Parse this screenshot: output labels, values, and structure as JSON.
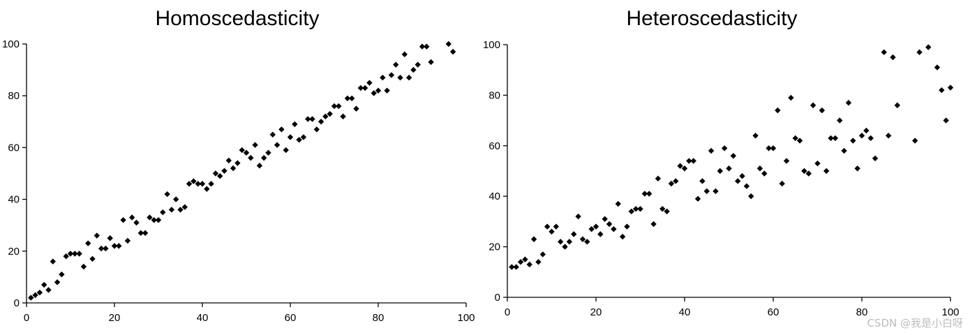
{
  "watermark": "CSDN @我是小白呀",
  "chart_data": [
    {
      "type": "scatter",
      "title": "Homoscedasticity",
      "xlabel": "",
      "ylabel": "",
      "xlim": [
        0,
        100
      ],
      "ylim": [
        0,
        100
      ],
      "xticks": [
        0,
        20,
        40,
        60,
        80,
        100
      ],
      "yticks": [
        0,
        20,
        40,
        60,
        80,
        100
      ],
      "grid": false,
      "marker": "diamond",
      "color": "#000000",
      "series": [
        {
          "x": [
            1,
            2,
            3,
            4,
            5,
            6,
            7,
            8,
            9,
            10,
            11,
            12,
            13,
            14,
            15,
            16,
            17,
            18,
            19,
            20,
            21,
            22,
            23,
            24,
            25,
            26,
            27,
            28,
            29,
            30,
            31,
            32,
            33,
            34,
            35,
            36,
            37,
            38,
            39,
            40,
            41,
            42,
            43,
            44,
            45,
            46,
            47,
            48,
            49,
            50,
            51,
            52,
            53,
            54,
            55,
            56,
            57,
            58,
            59,
            60,
            61,
            62,
            63,
            64,
            65,
            66,
            67,
            68,
            69,
            70,
            71,
            72,
            73,
            74,
            75,
            76,
            77,
            78,
            79,
            80,
            81,
            82,
            83,
            84,
            85,
            86,
            87,
            88,
            89,
            90,
            91,
            92,
            96,
            97
          ],
          "y": [
            2,
            3,
            4,
            7,
            5,
            16,
            8,
            11,
            18,
            19,
            19,
            19,
            14,
            23,
            17,
            26,
            21,
            21,
            25,
            22,
            22,
            32,
            24,
            33,
            31,
            27,
            27,
            33,
            32,
            32,
            35,
            42,
            36,
            40,
            36,
            37,
            46,
            47,
            46,
            46,
            44,
            46,
            50,
            49,
            51,
            55,
            52,
            54,
            59,
            58,
            56,
            61,
            53,
            56,
            58,
            65,
            61,
            67,
            59,
            64,
            69,
            63,
            64,
            71,
            71,
            67,
            70,
            72,
            73,
            76,
            76,
            72,
            79,
            79,
            75,
            83,
            83,
            85,
            81,
            82,
            87,
            82,
            88,
            92,
            87,
            96,
            87,
            90,
            92,
            99,
            99,
            93,
            100,
            97
          ]
        }
      ]
    },
    {
      "type": "scatter",
      "title": "Heteroscedasticity",
      "xlabel": "",
      "ylabel": "",
      "xlim": [
        0,
        100
      ],
      "ylim": [
        0,
        100
      ],
      "xticks": [
        0,
        20,
        40,
        60,
        80,
        100
      ],
      "yticks": [
        0,
        20,
        40,
        60,
        80,
        100
      ],
      "grid": false,
      "marker": "diamond",
      "color": "#000000",
      "series": [
        {
          "x": [
            1,
            2,
            3,
            4,
            5,
            6,
            7,
            8,
            9,
            10,
            11,
            12,
            13,
            14,
            15,
            16,
            17,
            18,
            19,
            20,
            21,
            22,
            23,
            24,
            25,
            26,
            27,
            28,
            29,
            30,
            31,
            32,
            33,
            34,
            35,
            36,
            37,
            38,
            39,
            40,
            41,
            42,
            43,
            44,
            45,
            46,
            47,
            48,
            49,
            50,
            51,
            52,
            53,
            54,
            55,
            56,
            57,
            58,
            59,
            60,
            61,
            62,
            63,
            64,
            65,
            66,
            67,
            68,
            69,
            70,
            71,
            72,
            73,
            74,
            75,
            76,
            77,
            78,
            79,
            80,
            81,
            82,
            83,
            85,
            86,
            87,
            88,
            92,
            93,
            95,
            97,
            98,
            99,
            100
          ],
          "y": [
            12,
            12,
            14,
            15,
            13,
            23,
            14,
            17,
            28,
            26,
            28,
            22,
            20,
            22,
            25,
            32,
            23,
            22,
            27,
            28,
            25,
            31,
            29,
            27,
            37,
            24,
            28,
            34,
            35,
            35,
            41,
            41,
            29,
            47,
            35,
            34,
            45,
            46,
            52,
            51,
            54,
            54,
            39,
            46,
            42,
            58,
            42,
            50,
            59,
            51,
            56,
            46,
            48,
            44,
            40,
            64,
            51,
            49,
            59,
            59,
            74,
            45,
            54,
            79,
            63,
            62,
            50,
            49,
            76,
            53,
            74,
            50,
            63,
            63,
            70,
            58,
            77,
            62,
            51,
            64,
            66,
            63,
            55,
            97,
            64,
            95,
            76,
            62,
            97,
            99,
            91,
            82,
            70,
            83
          ]
        }
      ]
    }
  ]
}
